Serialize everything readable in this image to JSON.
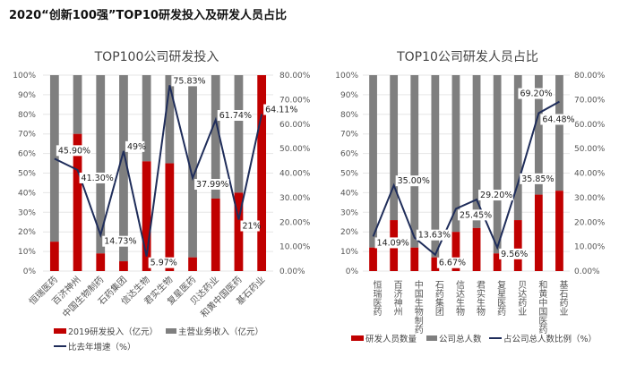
{
  "title": "2020“创新100强”TOP10研发投入及研发人员占比",
  "colors": {
    "red": "#C00000",
    "gray": "#7F7F7F",
    "line": "#1F2D5A"
  },
  "chart_data": [
    {
      "type": "bar",
      "stacked": "percent",
      "title": "TOP100公司研发投入",
      "categories": [
        "恒瑞医药",
        "百济神州",
        "中国生物制药",
        "石药集团",
        "信达生物",
        "君实生物",
        "复星医药",
        "贝达药业",
        "和黄中国医药",
        "基石药业"
      ],
      "series": [
        {
          "name": "2019研发投入（亿元）",
          "type": "bar",
          "color": "#C00000",
          "values": [
            15,
            70,
            9,
            5,
            56,
            55,
            7,
            37,
            40,
            100
          ]
        },
        {
          "name": "主营业务收入（亿元）",
          "type": "bar",
          "color": "#7F7F7F",
          "values": [
            85,
            30,
            91,
            95,
            44,
            45,
            93,
            63,
            60,
            0
          ]
        },
        {
          "name": "比去年增速（%）",
          "type": "line",
          "axis": "right",
          "color": "#1F2D5A",
          "values": [
            45.9,
            41.3,
            14.73,
            49,
            5.97,
            75.83,
            37.99,
            61.74,
            21,
            64.11
          ],
          "labels": [
            "45.90%",
            "41.30%",
            "14.73%",
            "49%",
            "5.97%",
            "75.83%",
            "37.99%",
            "61.74%",
            "21%",
            "64.11%"
          ]
        }
      ],
      "left_ticks": [
        "0%",
        "10%",
        "20%",
        "30%",
        "40%",
        "50%",
        "60%",
        "70%",
        "80%",
        "90%",
        "100%"
      ],
      "right_ticks": [
        "0.00%",
        "10.00%",
        "20.00%",
        "30.00%",
        "40.00%",
        "50.00%",
        "60.00%",
        "70.00%",
        "80.00%"
      ],
      "ylim": [
        0,
        100
      ],
      "y2lim": [
        0,
        80
      ],
      "label_rotation": "diagonal"
    },
    {
      "type": "bar",
      "stacked": "percent",
      "title": "TOP10公司研发人员占比",
      "categories": [
        "恒瑞医药",
        "百济神州",
        "中国生物制药",
        "石药集团",
        "信达生物",
        "君实生物",
        "复星医药",
        "贝达药业",
        "和黄中国医药",
        "基石药业"
      ],
      "series": [
        {
          "name": "研发人员数量",
          "type": "bar",
          "color": "#C00000",
          "values": [
            12,
            26,
            12,
            7,
            20,
            22,
            9,
            26,
            39,
            41
          ]
        },
        {
          "name": "公司总人数",
          "type": "bar",
          "color": "#7F7F7F",
          "values": [
            88,
            74,
            88,
            93,
            80,
            78,
            91,
            74,
            61,
            59
          ]
        },
        {
          "name": "占公司总人数比例（%）",
          "type": "line",
          "axis": "right",
          "color": "#1F2D5A",
          "values": [
            14.09,
            35.0,
            13.63,
            6.67,
            25.45,
            29.2,
            9.56,
            35.85,
            64.48,
            69.2
          ],
          "labels": [
            "14.09%",
            "35.00%",
            "13.63%",
            "6.67%",
            "25.45%",
            "29.20%",
            "9.56%",
            "35.85%",
            "64.48%",
            "69.20%"
          ]
        }
      ],
      "left_ticks": [
        "0%",
        "10%",
        "20%",
        "30%",
        "40%",
        "50%",
        "60%",
        "70%",
        "80%",
        "90%",
        "100%"
      ],
      "right_ticks": [
        "0.00%",
        "10.00%",
        "20.00%",
        "30.00%",
        "40.00%",
        "50.00%",
        "60.00%",
        "70.00%",
        "80.00%"
      ],
      "ylim": [
        0,
        100
      ],
      "y2lim": [
        0,
        80
      ],
      "label_rotation": "vertical"
    }
  ]
}
